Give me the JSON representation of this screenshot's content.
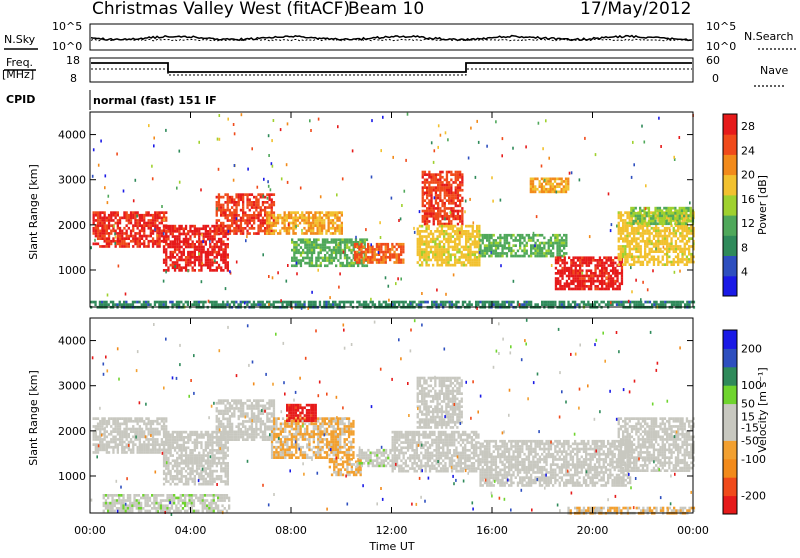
{
  "header": {
    "station": "Christmas Valley West (fitACF)",
    "beam": "Beam 10",
    "date": "17/May/2012"
  },
  "side_labels": {
    "nsky": "N.Sky",
    "freq_line1": "Freq.",
    "freq_line2": "[MHz]",
    "cpid": "CPID",
    "nsearch": "N.Search",
    "nave": "Nave"
  },
  "mode_text": "normal (fast) 151 IF",
  "axis_text": {
    "ylabel": "Slant Range [km]",
    "xlabel": "Time UT",
    "nsky_ticks": [
      "10^5",
      "10^0"
    ],
    "nsearch_ticks": [
      "10^5",
      "10^0"
    ],
    "freq_ticks": [
      "18",
      "8"
    ],
    "nave_ticks": [
      "60",
      "0"
    ]
  },
  "colors": {
    "power_scale": [
      "#1a1ae6",
      "#2e4fbf",
      "#2f8a5a",
      "#4fa85a",
      "#9fd12e",
      "#f2c12e",
      "#f28a1a",
      "#f04a1a",
      "#e61a1a"
    ],
    "velocity_scale": [
      "#e61a1a",
      "#f04a1a",
      "#f28a1a",
      "#f2a030",
      "#c8c8c0",
      "#c8c8c0",
      "#6fd42e",
      "#2f8a5a",
      "#2e4fbf",
      "#1a1ae6"
    ]
  },
  "chart_data": [
    {
      "type": "heatmap",
      "name": "Power",
      "title": "Christmas Valley West (fitACF)",
      "xlabel": "Time UT",
      "ylabel": "Slant Range [km]",
      "x_ticks": [
        "00:00",
        "04:00",
        "08:00",
        "12:00",
        "16:00",
        "20:00",
        "00:00"
      ],
      "y_ticks": [
        1000,
        2000,
        3000,
        4000
      ],
      "xlim_hours": [
        0,
        24
      ],
      "ylim_km": [
        180,
        4500
      ],
      "colorbar": {
        "label": "Power [dB]",
        "ticks": [
          4,
          8,
          12,
          16,
          20,
          24,
          28
        ],
        "range": [
          0,
          30
        ]
      },
      "echo_regions": [
        {
          "t0": 0.1,
          "t1": 3.0,
          "r0": 1500,
          "r1": 2300,
          "value": 27
        },
        {
          "t0": 2.9,
          "t1": 5.5,
          "r0": 1000,
          "r1": 2000,
          "value": 28
        },
        {
          "t0": 5.0,
          "t1": 7.3,
          "r0": 1800,
          "r1": 2700,
          "value": 26
        },
        {
          "t0": 7.0,
          "t1": 10.0,
          "r0": 1800,
          "r1": 2300,
          "value": 20
        },
        {
          "t0": 8.0,
          "t1": 11.0,
          "r0": 1100,
          "r1": 1700,
          "value": 12
        },
        {
          "t0": 10.5,
          "t1": 12.5,
          "r0": 1150,
          "r1": 1600,
          "value": 24
        },
        {
          "t0": 13.2,
          "t1": 14.8,
          "r0": 2000,
          "r1": 3200,
          "value": 26
        },
        {
          "t0": 13.0,
          "t1": 15.5,
          "r0": 1100,
          "r1": 2000,
          "value": 18
        },
        {
          "t0": 15.5,
          "t1": 19.0,
          "r0": 1300,
          "r1": 1800,
          "value": 12
        },
        {
          "t0": 17.5,
          "t1": 19.0,
          "r0": 2750,
          "r1": 3050,
          "value": 20
        },
        {
          "t0": 18.5,
          "t1": 21.2,
          "r0": 600,
          "r1": 1300,
          "value": 28
        },
        {
          "t0": 21.0,
          "t1": 24.0,
          "r0": 1100,
          "r1": 2300,
          "value": 18
        },
        {
          "t0": 21.5,
          "t1": 24.0,
          "r0": 2000,
          "r1": 2400,
          "value": 14
        },
        {
          "t0": 0.0,
          "t1": 24.0,
          "r0": 200,
          "r1": 320,
          "value": 8
        }
      ]
    },
    {
      "type": "heatmap",
      "name": "Velocity",
      "xlabel": "Time UT",
      "ylabel": "Slant Range [km]",
      "x_ticks": [
        "00:00",
        "04:00",
        "08:00",
        "12:00",
        "16:00",
        "20:00",
        "00:00"
      ],
      "y_ticks": [
        1000,
        2000,
        3000,
        4000
      ],
      "xlim_hours": [
        0,
        24
      ],
      "ylim_km": [
        180,
        4500
      ],
      "colorbar": {
        "label": "Velocity [m s⁻¹]",
        "ticks": [
          200,
          100,
          50,
          15,
          -15,
          -50,
          -100,
          -200
        ],
        "range": [
          -250,
          250
        ]
      },
      "echo_regions": [
        {
          "t0": 0.1,
          "t1": 3.0,
          "r0": 1500,
          "r1": 2300,
          "value": 0
        },
        {
          "t0": 2.9,
          "t1": 5.5,
          "r0": 800,
          "r1": 2000,
          "value": 0
        },
        {
          "t0": 5.0,
          "t1": 7.3,
          "r0": 1800,
          "r1": 2700,
          "value": 0
        },
        {
          "t0": 7.2,
          "t1": 10.5,
          "r0": 1400,
          "r1": 2300,
          "value": -60
        },
        {
          "t0": 7.8,
          "t1": 9.0,
          "r0": 2200,
          "r1": 2600,
          "value": -220
        },
        {
          "t0": 9.5,
          "t1": 10.8,
          "r0": 1000,
          "r1": 1400,
          "value": -60
        },
        {
          "t0": 10.6,
          "t1": 12.0,
          "r0": 1200,
          "r1": 1600,
          "value": 30
        },
        {
          "t0": 12.0,
          "t1": 15.5,
          "r0": 1100,
          "r1": 2000,
          "value": 0
        },
        {
          "t0": 13.0,
          "t1": 14.8,
          "r0": 2100,
          "r1": 3200,
          "value": 0
        },
        {
          "t0": 15.5,
          "t1": 21.5,
          "r0": 800,
          "r1": 1800,
          "value": 0
        },
        {
          "t0": 21.0,
          "t1": 24.0,
          "r0": 1100,
          "r1": 2300,
          "value": 0
        },
        {
          "t0": 0.5,
          "t1": 5.5,
          "r0": 250,
          "r1": 600,
          "value": 30
        },
        {
          "t0": 19.0,
          "t1": 24.0,
          "r0": 200,
          "r1": 320,
          "value": -50
        }
      ]
    }
  ]
}
